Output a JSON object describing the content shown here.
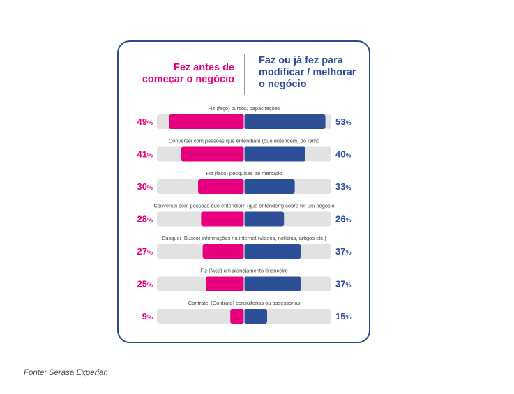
{
  "header": {
    "left_line1": "Fez antes de",
    "left_line2": "começar o negócio",
    "right_line1": "Faz ou já fez para",
    "right_line2": "modificar / melhorar",
    "right_line3": "o negócio"
  },
  "source": "Fonte: Serasa Experian",
  "colors": {
    "left": "#e6007e",
    "right": "#2c4f97",
    "track": "#e2e2e2",
    "border": "#2c4a8a"
  },
  "chart_data": {
    "type": "bar",
    "orientation": "diverging-horizontal",
    "categories": [
      "Fiz (faço) cursos, capacitações",
      "Conversei com pessoas que entendiam (que entendem) do ramo",
      "Fiz (faço) pesquisas de mercado",
      "Conversei com pessoas que entendiam (que entendem) sobre ter um negócio",
      "Busquei (Busco) informações na internet (vídeos, notícias, artigos etc.)",
      "Fiz (faço) um planejamento financeiro",
      "Contratei (Contrato) consultorias ou assessorias"
    ],
    "series": [
      {
        "name": "Fez antes de começar o negócio",
        "values": [
          49,
          41,
          30,
          28,
          27,
          25,
          9
        ]
      },
      {
        "name": "Faz ou já fez para modificar / melhorar o negócio",
        "values": [
          53,
          40,
          33,
          26,
          37,
          37,
          15
        ]
      }
    ],
    "value_suffix": "%",
    "xlim": [
      0,
      53
    ]
  }
}
